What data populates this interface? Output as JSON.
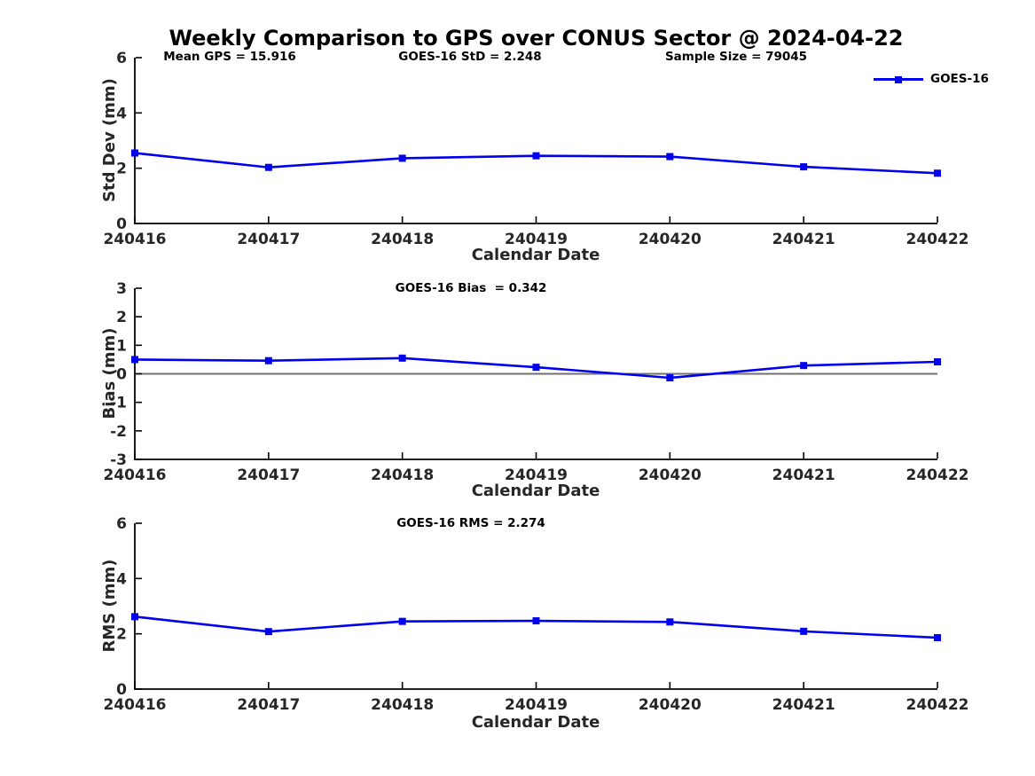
{
  "title": "Weekly Comparison to GPS over CONUS Sector @ 2024-04-22",
  "legend": {
    "label": "GOES-16",
    "position": "top-right"
  },
  "stats": {
    "mean_gps": 15.916,
    "goes16_std": 2.248,
    "goes16_bias": 0.342,
    "goes16_rms": 2.274,
    "sample_size": 79045
  },
  "colors": {
    "line": "#0000EE",
    "zero_line": "#707070",
    "axis": "#000000",
    "tick_label": "#262626",
    "text": "#000000",
    "background": "#ffffff"
  },
  "chart_data": [
    {
      "type": "line",
      "annotations": [
        "Mean GPS = 15.916",
        "GOES-16 StD = 2.248",
        "Sample Size = 79045"
      ],
      "categories": [
        "240416",
        "240417",
        "240418",
        "240419",
        "240420",
        "240421",
        "240422"
      ],
      "series": [
        {
          "name": "GOES-16",
          "values": [
            2.55,
            2.03,
            2.36,
            2.45,
            2.42,
            2.05,
            1.82
          ]
        }
      ],
      "xlabel": "Calendar Date",
      "ylabel": "Std Dev (mm)",
      "ylim": [
        0,
        6
      ],
      "yticks": [
        6,
        4,
        2,
        0
      ],
      "grid": false,
      "zero_line": false,
      "legend_entries": [
        "GOES-16"
      ]
    },
    {
      "type": "line",
      "annotations": [
        "GOES-16 Bias  = 0.342"
      ],
      "categories": [
        "240416",
        "240417",
        "240418",
        "240419",
        "240420",
        "240421",
        "240422"
      ],
      "series": [
        {
          "name": "GOES-16",
          "values": [
            0.5,
            0.46,
            0.55,
            0.23,
            -0.14,
            0.29,
            0.42
          ]
        }
      ],
      "xlabel": "Calendar Date",
      "ylabel": "Bias (mm)",
      "ylim": [
        -3,
        3
      ],
      "yticks": [
        3,
        2,
        1,
        0,
        -1,
        -2,
        -3
      ],
      "grid": false,
      "zero_line": true
    },
    {
      "type": "line",
      "annotations": [
        "GOES-16 RMS = 2.274"
      ],
      "categories": [
        "240416",
        "240417",
        "240418",
        "240419",
        "240420",
        "240421",
        "240422"
      ],
      "series": [
        {
          "name": "GOES-16",
          "values": [
            2.62,
            2.08,
            2.45,
            2.47,
            2.43,
            2.09,
            1.86
          ]
        }
      ],
      "xlabel": "Calendar Date",
      "ylabel": "RMS (mm)",
      "ylim": [
        0,
        6
      ],
      "yticks": [
        6,
        4,
        2,
        0
      ],
      "grid": false,
      "zero_line": false
    }
  ]
}
